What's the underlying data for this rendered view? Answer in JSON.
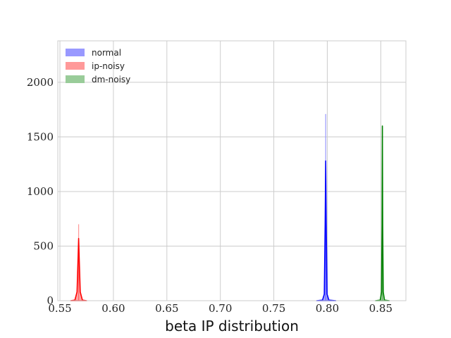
{
  "chart_data": {
    "type": "histogram",
    "title": "",
    "xlabel": "beta IP distribution",
    "ylabel": "",
    "xlim": [
      0.548,
      0.8735
    ],
    "ylim": [
      0,
      2380
    ],
    "x_ticks": [
      0.55,
      0.6,
      0.65,
      0.7,
      0.75,
      0.8,
      0.85
    ],
    "x_tick_labels": [
      "0.55",
      "0.60",
      "0.65",
      "0.70",
      "0.75",
      "0.80",
      "0.85"
    ],
    "y_ticks": [
      0,
      500,
      1000,
      1500,
      2000
    ],
    "y_tick_labels": [
      "0",
      "500",
      "1000",
      "1500",
      "2000"
    ],
    "grid": true,
    "legend_position": "top-left",
    "series": [
      {
        "name": "normal",
        "color": "#0000ff",
        "bar_color": "#9999ff",
        "hist_peak_x": 0.7985,
        "hist_peak": 1710,
        "density": [
          [
            0.79,
            0
          ],
          [
            0.7955,
            5
          ],
          [
            0.7972,
            60
          ],
          [
            0.798,
            700
          ],
          [
            0.7985,
            1280
          ],
          [
            0.799,
            700
          ],
          [
            0.7998,
            60
          ],
          [
            0.8015,
            5
          ],
          [
            0.808,
            0
          ]
        ]
      },
      {
        "name": "ip-noisy",
        "color": "#ff0000",
        "bar_color": "#ff9999",
        "hist_peak_x": 0.5675,
        "hist_peak": 700,
        "density": [
          [
            0.56,
            0
          ],
          [
            0.564,
            5
          ],
          [
            0.566,
            80
          ],
          [
            0.567,
            400
          ],
          [
            0.5675,
            570
          ],
          [
            0.568,
            400
          ],
          [
            0.569,
            80
          ],
          [
            0.571,
            5
          ],
          [
            0.575,
            0
          ]
        ]
      },
      {
        "name": "dm-noisy",
        "color": "#008000",
        "bar_color": "#99cc99",
        "hist_peak_x": 0.8515,
        "hist_peak": 1600,
        "density": [
          [
            0.845,
            0
          ],
          [
            0.8495,
            5
          ],
          [
            0.8507,
            80
          ],
          [
            0.8512,
            700
          ],
          [
            0.8515,
            1600
          ],
          [
            0.8518,
            700
          ],
          [
            0.8523,
            80
          ],
          [
            0.8535,
            5
          ],
          [
            0.858,
            0
          ]
        ]
      }
    ]
  }
}
